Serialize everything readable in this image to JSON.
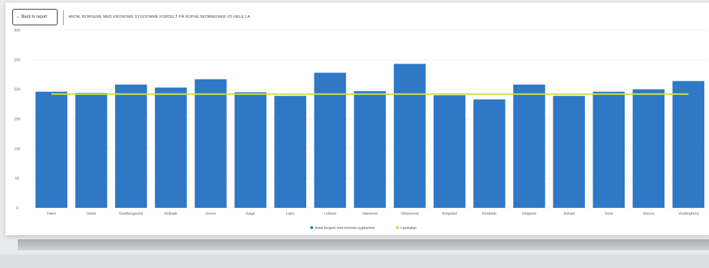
{
  "toolbar": {
    "back_label": "Back to report"
  },
  "colors": {
    "bar": "#2e78c6",
    "line": "#cfe03a",
    "grid": "#f2f2f2"
  },
  "chart_data": {
    "type": "bar",
    "title": "ANTAL BORGERE MED KRONISKE SYGDOMME FORDELT PÅ KOPIALSKOMMUNER VS HELE LA",
    "categories": [
      "Fæst",
      "Gelsö",
      "Guldborgsund",
      "Holbæk",
      "Greve",
      "Køge",
      "Lejre",
      "Lolland",
      "Næstved",
      "Odsherred",
      "Ringsted",
      "Roskilde",
      "Slagelse",
      "Solrød",
      "Sorø",
      "Stevns",
      "Vordingborg"
    ],
    "series": [
      {
        "name": "Antal borgere med kroniske sygdomme",
        "type": "bar",
        "values": [
          196,
          194,
          208,
          203,
          217,
          195,
          189,
          228,
          197,
          243,
          190,
          183,
          208,
          189,
          196,
          200,
          214
        ]
      },
      {
        "name": "Landsplan",
        "type": "line",
        "values": [
          192,
          192,
          192,
          192,
          192,
          192,
          192,
          192,
          192,
          192,
          192,
          192,
          192,
          192,
          192,
          192,
          192
        ]
      }
    ],
    "yticks": [
      0,
      50,
      100,
      150,
      200,
      250,
      300
    ],
    "ylim": [
      0,
      300
    ],
    "legend": {
      "placement": "bottom",
      "items": [
        "Antal borgere med kroniske sygdomme",
        "Landsplan"
      ]
    }
  }
}
